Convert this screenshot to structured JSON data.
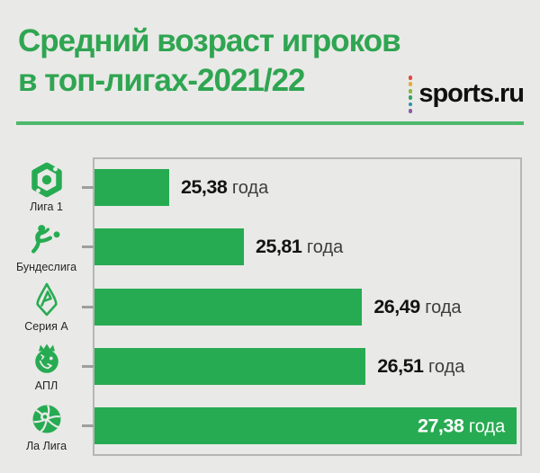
{
  "header": {
    "title_line1": "Средний возраст игроков",
    "title_line2": "в топ-лигах-2021/22",
    "brand": {
      "name": "sports.ru",
      "dots": [
        "#dd4a3f",
        "#e9a83b",
        "#8db83f",
        "#33a162",
        "#2d8fa8",
        "#8a5ba5"
      ]
    }
  },
  "chart_data": {
    "type": "bar",
    "orientation": "horizontal",
    "title": "Средний возраст игроков в топ-лигах-2021/22",
    "unit": "года",
    "categories": [
      "Лига 1",
      "Бундеслига",
      "Серия А",
      "АПЛ",
      "Ла Лига"
    ],
    "values": [
      25.38,
      25.81,
      26.49,
      26.51,
      27.38
    ],
    "value_labels": [
      "25,38",
      "25,81",
      "26,49",
      "26,51",
      "27,38"
    ],
    "icons": [
      "ligue1-logo",
      "bundesliga-logo",
      "seriea-logo",
      "premier-league-logo",
      "laliga-logo"
    ],
    "axis_min": 24.95,
    "axis_max": 27.41,
    "last_label_inside": true,
    "bar_color": "#27ab52",
    "grid": false,
    "legend": false
  },
  "colors": {
    "background": "#e9e9e7",
    "title_green": "#2fa551",
    "divider_green": "#4db96c",
    "bar_green": "#27ab52",
    "plot_border": "#b6b6b4",
    "tick_gray": "#9e9e9c",
    "value_number": "#131313",
    "value_unit": "#3d3d3d",
    "inside_label": "#ffffff"
  }
}
